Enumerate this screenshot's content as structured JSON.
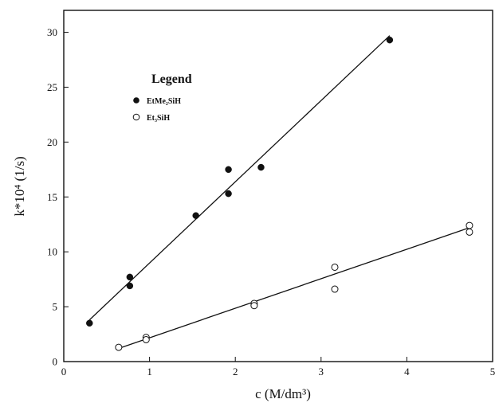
{
  "chart_data": {
    "type": "scatter",
    "title": "",
    "xlabel": "c  (M/dm³)",
    "ylabel": "k*10⁴  (1/s)",
    "xlim": [
      0,
      5
    ],
    "ylim": [
      0,
      32
    ],
    "x_ticks": [
      0,
      1,
      2,
      3,
      4,
      5
    ],
    "y_ticks": [
      0,
      5,
      10,
      15,
      20,
      25,
      30
    ],
    "grid": false,
    "legend": {
      "title": "Legend",
      "placement": "top-left"
    },
    "series": [
      {
        "name": "EtMe₂SiH",
        "marker": "filled-circle",
        "color": "#111111",
        "points": [
          [
            0.3,
            3.5
          ],
          [
            0.77,
            7.7
          ],
          [
            0.77,
            6.9
          ],
          [
            1.54,
            13.3
          ],
          [
            1.92,
            17.5
          ],
          [
            1.92,
            15.3
          ],
          [
            2.3,
            17.7
          ],
          [
            3.8,
            29.3
          ]
        ],
        "fit": [
          [
            0.3,
            3.8
          ],
          [
            3.8,
            29.7
          ]
        ]
      },
      {
        "name": "Et₃SiH",
        "marker": "open-circle",
        "color": "#111111",
        "points": [
          [
            0.64,
            1.3
          ],
          [
            0.96,
            2.2
          ],
          [
            0.96,
            2.0
          ],
          [
            2.22,
            5.3
          ],
          [
            2.22,
            5.1
          ],
          [
            3.16,
            8.6
          ],
          [
            3.16,
            6.6
          ],
          [
            4.73,
            12.4
          ],
          [
            4.73,
            11.8
          ]
        ],
        "fit": [
          [
            0.64,
            1.2
          ],
          [
            4.73,
            12.2
          ]
        ]
      }
    ]
  }
}
